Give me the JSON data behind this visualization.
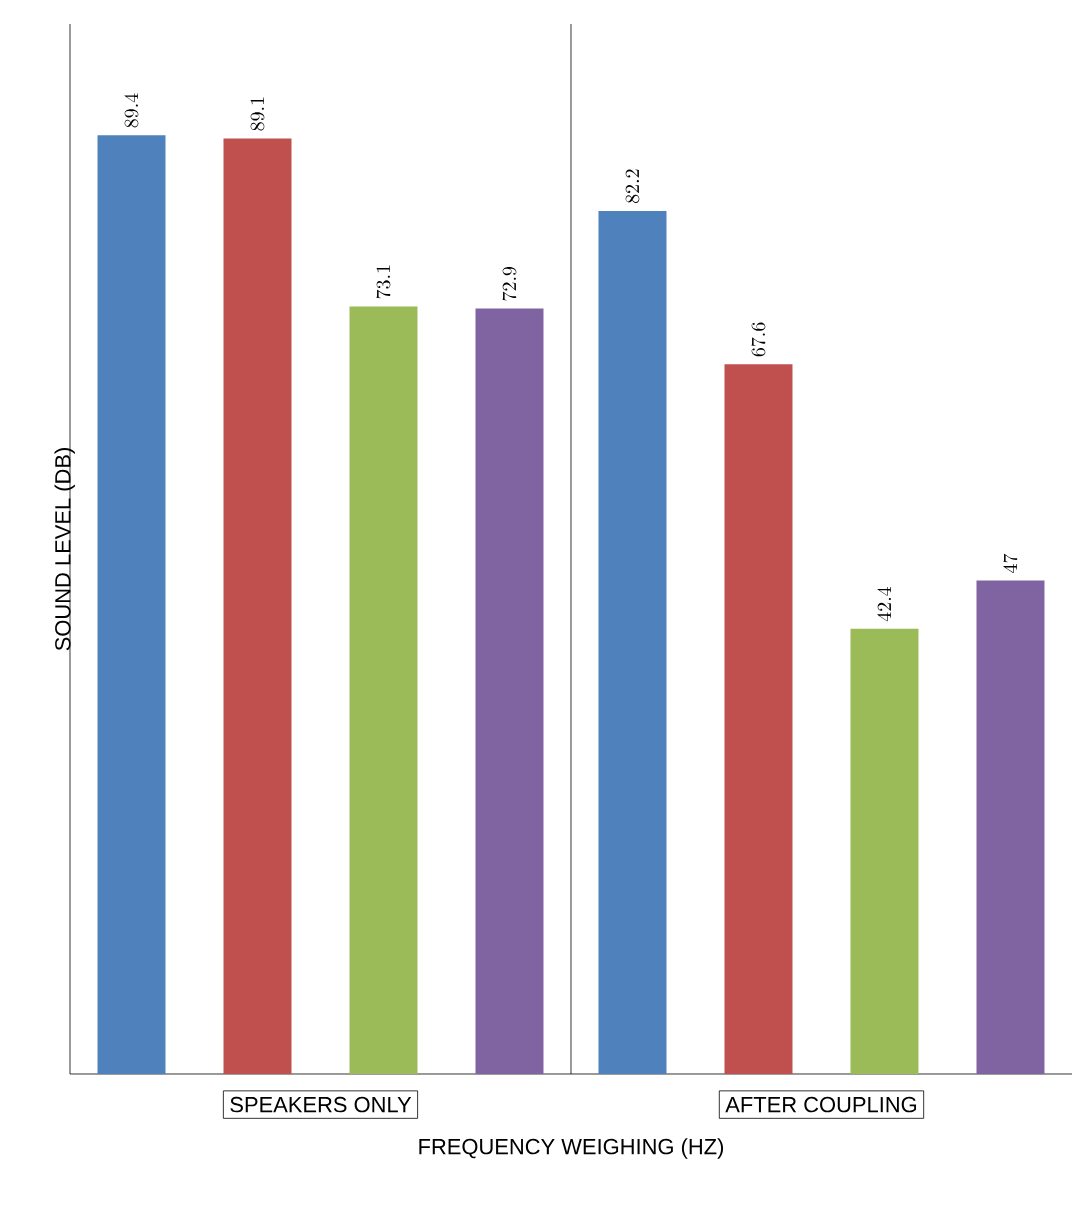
{
  "chart_data": {
    "type": "bar",
    "xlabel": "FREQUENCY WEIGHING (HZ)",
    "ylabel": "SOUND LEVEL (DB)",
    "categories": [
      "SPEAKERS ONLY",
      "AFTER COUPLING"
    ],
    "series": [
      {
        "color": "#4f81bd",
        "values": [
          89.4,
          82.2
        ]
      },
      {
        "color": "#c0504d",
        "values": [
          89.1,
          67.6
        ]
      },
      {
        "color": "#9bbb59",
        "values": [
          73.1,
          42.4
        ]
      },
      {
        "color": "#8064a2",
        "values": [
          72.9,
          47
        ]
      }
    ],
    "ylim": [
      0,
      100
    ],
    "data_labels": true
  }
}
